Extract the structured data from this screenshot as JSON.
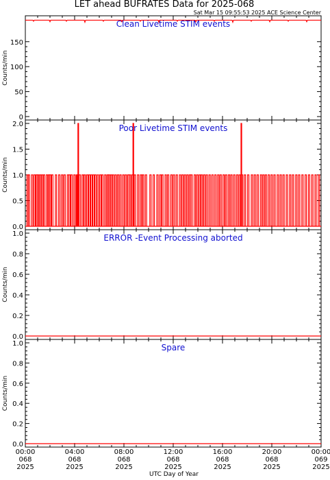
{
  "header": {
    "title": "LET ahead BUFRATES Data for 2025-068",
    "timestamp": "Sat Mar 15 09:55:53 2025 ACE Science Center"
  },
  "chart_data": [
    {
      "type": "line",
      "title": "Clean Livetime STIM events",
      "ylabel": "Counts/min",
      "ylim": [
        0,
        195
      ],
      "yticks": [
        "0",
        "50",
        "100",
        "150"
      ],
      "yticks_values": [
        0,
        50,
        100,
        150
      ],
      "x": [
        0,
        1440
      ],
      "series": [
        {
          "color": "#ff0000",
          "baseline": 193,
          "dips": [
            [
              40,
              191
            ],
            [
              120,
              190
            ],
            [
              200,
              191
            ],
            [
              290,
              189
            ],
            [
              380,
              191
            ],
            [
              470,
              190
            ],
            [
              560,
              191
            ],
            [
              650,
              189
            ],
            [
              740,
              191
            ],
            [
              830,
              190
            ],
            [
              920,
              191
            ],
            [
              1010,
              189
            ],
            [
              1100,
              191
            ],
            [
              1190,
              190
            ],
            [
              1280,
              191
            ],
            [
              1370,
              190
            ]
          ]
        }
      ]
    },
    {
      "type": "line",
      "title": "Poor Livetime STIM events",
      "ylabel": "Counts/min",
      "ylim": [
        0,
        2
      ],
      "yticks": [
        "0.0",
        "0.5",
        "1.0",
        "1.5",
        "2.0"
      ],
      "yticks_values": [
        0,
        0.5,
        1,
        1.5,
        2
      ],
      "x": [
        0,
        1440
      ],
      "series": [
        {
          "color": "#ff0000",
          "spikes_1": [
            8,
            14,
            30,
            42,
            52,
            58,
            68,
            78,
            88,
            102,
            112,
            118,
            128,
            146,
            162,
            176,
            188,
            204,
            212,
            222,
            236,
            248,
            252,
            262,
            276,
            286,
            298,
            308,
            318,
            328,
            338,
            350,
            362,
            372,
            386,
            398,
            404,
            414,
            424,
            436,
            448,
            460,
            474,
            486,
            498,
            506,
            518,
            530,
            546,
            560,
            570,
            584,
            606,
            622,
            640,
            654,
            664,
            680,
            692,
            708,
            720,
            734,
            750,
            762,
            774,
            786,
            798,
            806,
            822,
            834,
            846,
            856,
            868,
            880,
            894,
            908,
            922,
            936,
            948,
            962,
            974,
            988,
            1000,
            1014,
            1028,
            1040,
            1052,
            1066,
            1082,
            1100,
            1114,
            1128,
            1144,
            1156,
            1168,
            1182,
            1196,
            1210,
            1226,
            1240,
            1254,
            1270,
            1286,
            1300,
            1316,
            1330,
            1346,
            1362,
            1378,
            1394,
            1410,
            1426
          ],
          "spikes_2": [
            256,
            524,
            1050
          ]
        }
      ]
    },
    {
      "type": "line",
      "title": "ERROR -Event Processing aborted",
      "ylabel": "Counts/min",
      "ylim": [
        0,
        1
      ],
      "yticks": [
        "0.0",
        "0.2",
        "0.4",
        "0.6",
        "0.8",
        "1.0"
      ],
      "yticks_values": [
        0,
        0.2,
        0.4,
        0.6,
        0.8,
        1
      ],
      "x": [
        0,
        1440
      ],
      "series": [
        {
          "color": "#ff0000",
          "constant": 0
        }
      ]
    },
    {
      "type": "line",
      "title": "Spare",
      "ylabel": "Counts/min",
      "ylim": [
        0,
        1
      ],
      "yticks": [
        "0.0",
        "0.2",
        "0.4",
        "0.6",
        "0.8",
        "1.0"
      ],
      "yticks_values": [
        0,
        0.2,
        0.4,
        0.6,
        0.8,
        1
      ],
      "x": [
        0,
        1440
      ],
      "series": [
        {
          "color": "#ff0000",
          "constant": 0
        }
      ]
    }
  ],
  "xaxis": {
    "label": "UTC Day of Year",
    "ticks": [
      {
        "time": "00:00",
        "doy": "068",
        "year": "2025"
      },
      {
        "time": "04:00",
        "doy": "068",
        "year": "2025"
      },
      {
        "time": "08:00",
        "doy": "068",
        "year": "2025"
      },
      {
        "time": "12:00",
        "doy": "068",
        "year": "2025"
      },
      {
        "time": "16:00",
        "doy": "068",
        "year": "2025"
      },
      {
        "time": "20:00",
        "doy": "068",
        "year": "2025"
      },
      {
        "time": "00:00",
        "doy": "069",
        "year": "2025"
      }
    ],
    "tick_minutes": [
      0,
      240,
      480,
      720,
      960,
      1200,
      1440
    ]
  }
}
